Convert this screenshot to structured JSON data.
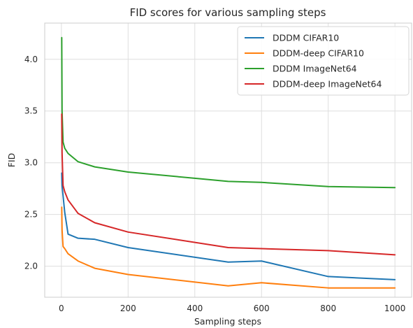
{
  "chart_data": {
    "type": "line",
    "title": "FID scores for various sampling steps",
    "xlabel": "Sampling steps",
    "ylabel": "FID",
    "xlim": [
      -50,
      1050
    ],
    "ylim": [
      1.7,
      4.35
    ],
    "xticks": [
      0,
      200,
      400,
      600,
      800,
      1000
    ],
    "yticks": [
      2.0,
      2.5,
      3.0,
      3.5,
      4.0
    ],
    "xtick_labels": [
      "0",
      "200",
      "400",
      "600",
      "800",
      "1000"
    ],
    "ytick_labels": [
      "2.0",
      "2.5",
      "3.0",
      "3.5",
      "4.0"
    ],
    "grid": true,
    "legend_position": "top-right",
    "series": [
      {
        "name": "DDDM CIFAR10",
        "color": "#1f77b4",
        "x": [
          1,
          2,
          5,
          10,
          20,
          50,
          100,
          200,
          500,
          600,
          800,
          1000
        ],
        "y": [
          2.9,
          2.78,
          2.68,
          2.52,
          2.31,
          2.27,
          2.26,
          2.18,
          2.04,
          2.05,
          1.9,
          1.87
        ]
      },
      {
        "name": "DDDM-deep CIFAR10",
        "color": "#ff7f0e",
        "x": [
          1,
          2,
          5,
          10,
          20,
          50,
          100,
          200,
          500,
          600,
          800,
          1000
        ],
        "y": [
          2.57,
          2.35,
          2.19,
          2.17,
          2.12,
          2.05,
          1.98,
          1.92,
          1.81,
          1.84,
          1.79,
          1.79
        ]
      },
      {
        "name": "DDDM ImageNet64",
        "color": "#2ca02c",
        "x": [
          1,
          2,
          5,
          10,
          20,
          50,
          100,
          200,
          500,
          600,
          800,
          1000
        ],
        "y": [
          4.21,
          3.5,
          3.2,
          3.14,
          3.09,
          3.01,
          2.96,
          2.91,
          2.82,
          2.81,
          2.77,
          2.76
        ]
      },
      {
        "name": "DDDM-deep ImageNet64",
        "color": "#d62728",
        "x": [
          1,
          2,
          5,
          10,
          20,
          50,
          100,
          200,
          500,
          600,
          800,
          1000
        ],
        "y": [
          3.47,
          3.1,
          2.78,
          2.72,
          2.64,
          2.51,
          2.42,
          2.33,
          2.18,
          2.17,
          2.15,
          2.11
        ]
      }
    ]
  }
}
